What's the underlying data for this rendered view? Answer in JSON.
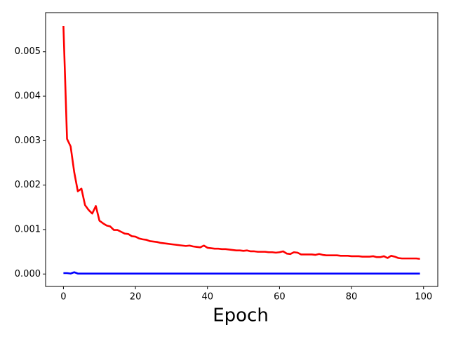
{
  "chart_data": {
    "type": "line",
    "xlabel": "Epoch",
    "x": [
      0,
      1,
      2,
      3,
      4,
      5,
      6,
      7,
      8,
      9,
      10,
      11,
      12,
      13,
      14,
      15,
      16,
      17,
      18,
      19,
      20,
      21,
      22,
      23,
      24,
      25,
      26,
      27,
      28,
      29,
      30,
      31,
      32,
      33,
      34,
      35,
      36,
      37,
      38,
      39,
      40,
      41,
      42,
      43,
      44,
      45,
      46,
      47,
      48,
      49,
      50,
      51,
      52,
      53,
      54,
      55,
      56,
      57,
      58,
      59,
      60,
      61,
      62,
      63,
      64,
      65,
      66,
      67,
      68,
      69,
      70,
      71,
      72,
      73,
      74,
      75,
      76,
      77,
      78,
      79,
      80,
      81,
      82,
      83,
      84,
      85,
      86,
      87,
      88,
      89,
      90,
      91,
      92,
      93,
      94,
      95,
      96,
      97,
      98,
      99
    ],
    "series": [
      {
        "color": "#ff0000",
        "values": [
          0.00558,
          0.00304,
          0.00287,
          0.00229,
          0.00186,
          0.00192,
          0.00155,
          0.00144,
          0.00136,
          0.00153,
          0.0012,
          0.00114,
          0.00109,
          0.00107,
          0.00099,
          0.00099,
          0.00095,
          0.00091,
          0.0009,
          0.00085,
          0.00084,
          0.0008,
          0.00078,
          0.00077,
          0.00074,
          0.00073,
          0.00072,
          0.0007,
          0.00069,
          0.00068,
          0.00067,
          0.00066,
          0.00065,
          0.00064,
          0.00063,
          0.00064,
          0.00062,
          0.00061,
          0.0006,
          0.00064,
          0.00059,
          0.00058,
          0.00057,
          0.00057,
          0.00056,
          0.00056,
          0.00055,
          0.00054,
          0.00053,
          0.00053,
          0.00052,
          0.00053,
          0.00051,
          0.00051,
          0.0005,
          0.0005,
          0.0005,
          0.00049,
          0.00049,
          0.00048,
          0.00049,
          0.00051,
          0.00046,
          0.00045,
          0.00049,
          0.00048,
          0.00044,
          0.00044,
          0.00044,
          0.00044,
          0.00043,
          0.00045,
          0.00043,
          0.00042,
          0.00042,
          0.00042,
          0.00042,
          0.00041,
          0.00041,
          0.00041,
          0.0004,
          0.0004,
          0.0004,
          0.00039,
          0.00039,
          0.00039,
          0.0004,
          0.00038,
          0.00038,
          0.0004,
          0.00036,
          0.00041,
          0.00039,
          0.00036,
          0.00035,
          0.00035,
          0.00035,
          0.00035,
          0.00035,
          0.00034
        ]
      },
      {
        "color": "#0000ff",
        "values": [
          2e-05,
          2e-05,
          1e-05,
          4e-05,
          1e-05,
          1e-05,
          1e-05,
          1e-05,
          1e-05,
          1e-05,
          1e-05,
          1e-05,
          1e-05,
          1e-05,
          1e-05,
          1e-05,
          1e-05,
          1e-05,
          1e-05,
          1e-05,
          1e-05,
          1e-05,
          1e-05,
          1e-05,
          1e-05,
          1e-05,
          1e-05,
          1e-05,
          1e-05,
          1e-05,
          1e-05,
          1e-05,
          1e-05,
          1e-05,
          1e-05,
          1e-05,
          1e-05,
          1e-05,
          1e-05,
          1e-05,
          1e-05,
          1e-05,
          1e-05,
          1e-05,
          1e-05,
          1e-05,
          1e-05,
          1e-05,
          1e-05,
          1e-05,
          1e-05,
          1e-05,
          1e-05,
          1e-05,
          1e-05,
          1e-05,
          1e-05,
          1e-05,
          1e-05,
          1e-05,
          1e-05,
          1e-05,
          1e-05,
          1e-05,
          1e-05,
          1e-05,
          1e-05,
          1e-05,
          1e-05,
          1e-05,
          1e-05,
          1e-05,
          1e-05,
          1e-05,
          1e-05,
          1e-05,
          1e-05,
          1e-05,
          1e-05,
          1e-05,
          1e-05,
          1e-05,
          1e-05,
          1e-05,
          1e-05,
          1e-05,
          1e-05,
          1e-05,
          1e-05,
          1e-05,
          1e-05,
          1e-05,
          1e-05,
          1e-05,
          1e-05,
          1e-05,
          1e-05,
          1e-05,
          1e-05,
          1e-05
        ]
      }
    ],
    "xlim": [
      -4.95,
      103.95
    ],
    "xticks": [
      0,
      20,
      40,
      60,
      80,
      100
    ],
    "ylim": [
      -0.00028,
      0.00588
    ],
    "yticks": [
      {
        "value": 0,
        "label": "0.000"
      },
      {
        "value": 0.001,
        "label": "0.001"
      },
      {
        "value": 0.002,
        "label": "0.002"
      },
      {
        "value": 0.003,
        "label": "0.003"
      },
      {
        "value": 0.004,
        "label": "0.004"
      },
      {
        "value": 0.005,
        "label": "0.005"
      }
    ]
  }
}
